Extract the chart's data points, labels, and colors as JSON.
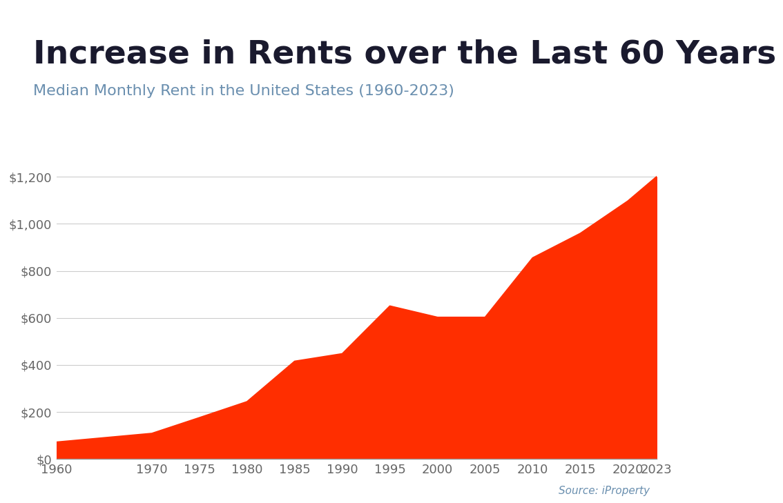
{
  "title": "Increase in Rents over the Last 60 Years",
  "subtitle": "Median Monthly Rent in the United States (1960-2023)",
  "source": "Source: iProperty",
  "years": [
    1960,
    1970,
    1975,
    1980,
    1985,
    1990,
    1995,
    2000,
    2005,
    2010,
    2015,
    2020,
    2023
  ],
  "values": [
    71,
    108,
    175,
    243,
    415,
    447,
    650,
    602,
    602,
    855,
    959,
    1097,
    1200
  ],
  "fill_color": "#FF2E00",
  "line_color": "#FF2E00",
  "background_color": "#FFFFFF",
  "top_bar_color": "#29ABE2",
  "title_color": "#1a1a2e",
  "subtitle_color": "#6a8faf",
  "tick_label_color": "#666666",
  "grid_color": "#cccccc",
  "ylim": [
    0,
    1300
  ],
  "yticks": [
    0,
    200,
    400,
    600,
    800,
    1000,
    1200
  ],
  "ytick_labels": [
    "$0",
    "$200",
    "$400",
    "$600",
    "$800",
    "$1,000",
    "$1,200"
  ],
  "title_fontsize": 34,
  "subtitle_fontsize": 16,
  "tick_fontsize": 13,
  "source_fontsize": 11
}
